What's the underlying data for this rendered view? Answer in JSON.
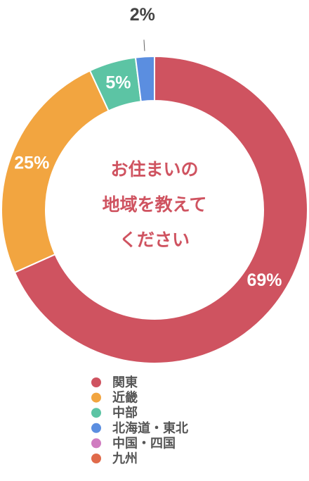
{
  "chart_data": {
    "type": "donut",
    "center_text": [
      "お住まいの",
      "地域を教えて",
      "ください"
    ],
    "categories": [
      "関東",
      "近畿",
      "中部",
      "北海道・東北",
      "中国・四国",
      "九州"
    ],
    "values": [
      69,
      25,
      5,
      2,
      0,
      0
    ],
    "value_labels": [
      "69%",
      "25%",
      "5%",
      "2%",
      null,
      null
    ],
    "colors": [
      "#cf5360",
      "#f2a540",
      "#5cc4a4",
      "#5b8ee0",
      "#d07cc0",
      "#e06a4a"
    ],
    "legend": "bottom"
  }
}
